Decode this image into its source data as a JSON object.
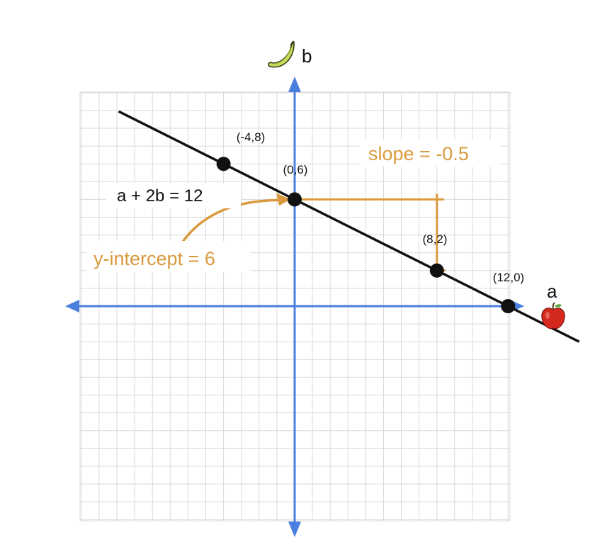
{
  "chart_data": {
    "type": "line",
    "title": "",
    "xlabel": "a",
    "ylabel": "b",
    "xlim": [
      -12,
      12
    ],
    "ylim": [
      -12,
      12
    ],
    "grid": true,
    "equation": "a + 2b = 12",
    "line": {
      "slope": -0.5,
      "intercept": 6,
      "x_range": [
        -10,
        16
      ]
    },
    "points": [
      {
        "x": -4,
        "y": 8,
        "label": "(-4,8)"
      },
      {
        "x": 0,
        "y": 6,
        "label": "(0,6)"
      },
      {
        "x": 8,
        "y": 2,
        "label": "(8,2)"
      },
      {
        "x": 12,
        "y": 0,
        "label": "(12,0)"
      }
    ],
    "annotations": {
      "slope": "slope = -0.5",
      "y_intercept": "y-intercept = 6"
    }
  },
  "icons": {
    "b_axis": "banana-icon",
    "a_axis": "apple-icon"
  },
  "colors": {
    "axis": "#4a7fe0",
    "line": "#111111",
    "annotation": "#d99a3e",
    "grid": "#d9d9d9",
    "point": "#111111"
  }
}
